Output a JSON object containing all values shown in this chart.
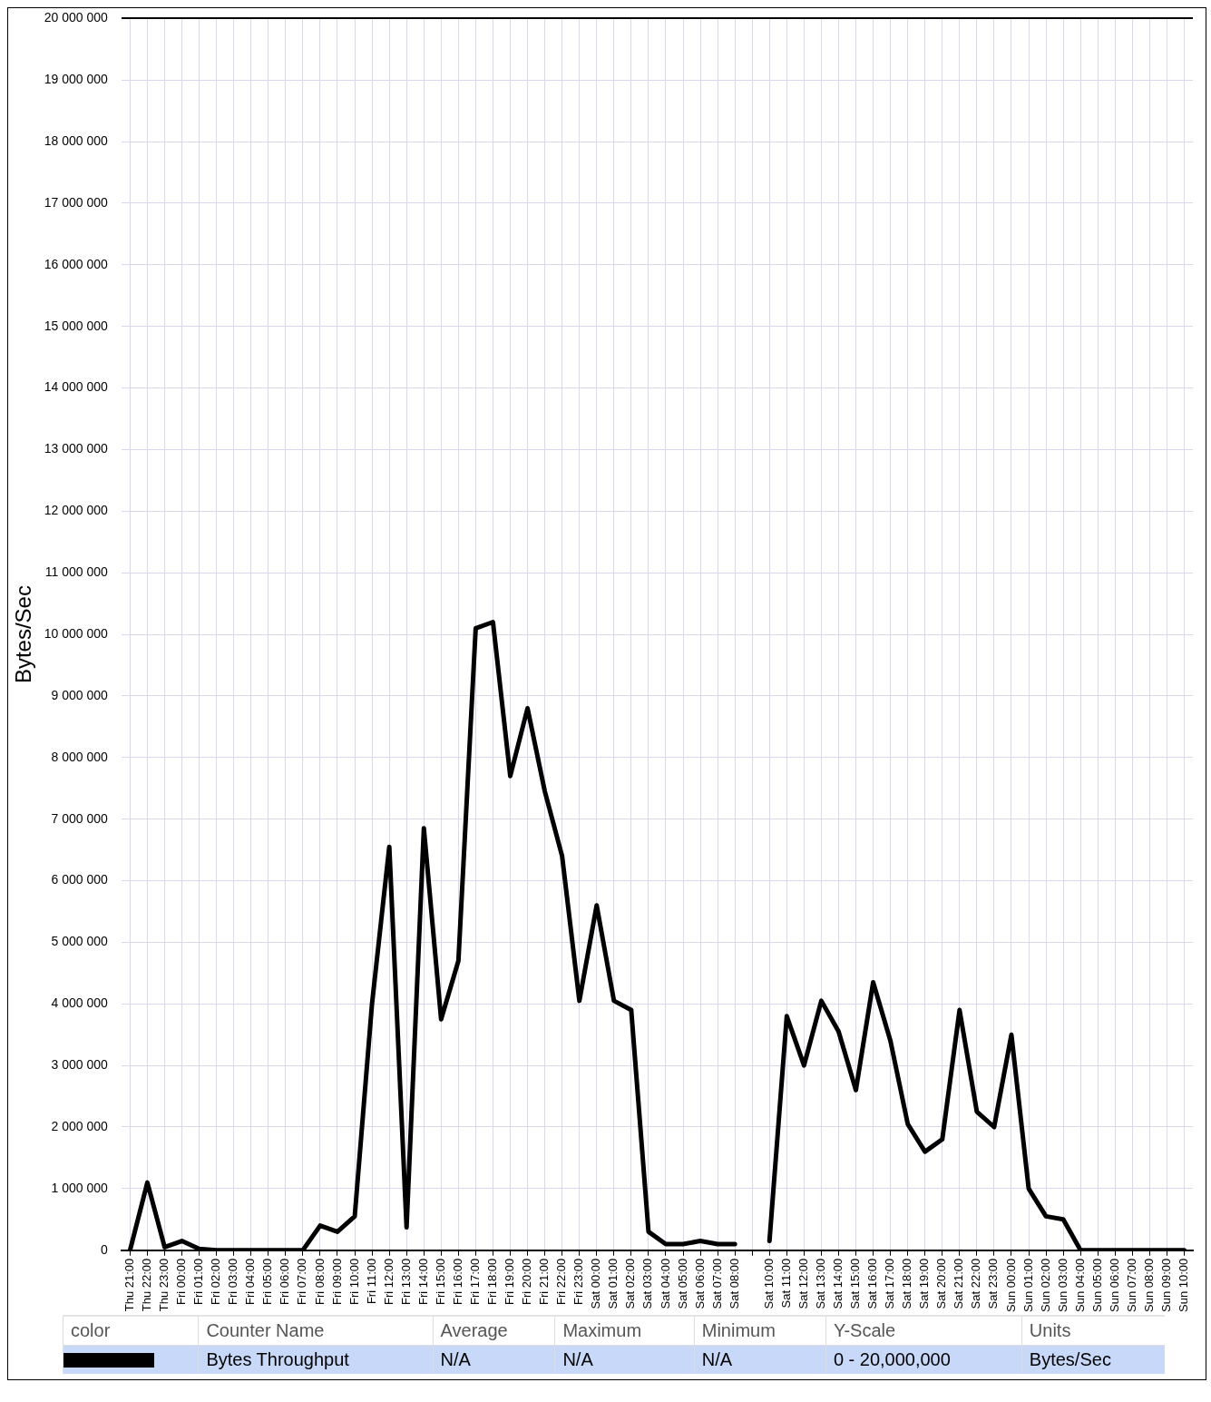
{
  "chart_data": {
    "type": "line",
    "ylabel": "Bytes/Sec",
    "categories": [
      "Thu 21:00",
      "Thu 22:00",
      "Thu 23:00",
      "Fri 00:00",
      "Fri 01:00",
      "Fri 02:00",
      "Fri 03:00",
      "Fri 04:00",
      "Fri 05:00",
      "Fri 06:00",
      "Fri 07:00",
      "Fri 08:00",
      "Fri 09:00",
      "Fri 10:00",
      "Fri 11:00",
      "Fri 12:00",
      "Fri 13:00",
      "Fri 14:00",
      "Fri 15:00",
      "Fri 16:00",
      "Fri 17:00",
      "Fri 18:00",
      "Fri 19:00",
      "Fri 20:00",
      "Fri 21:00",
      "Fri 22:00",
      "Fri 23:00",
      "Sat 00:00",
      "Sat 01:00",
      "Sat 02:00",
      "Sat 03:00",
      "Sat 04:00",
      "Sat 05:00",
      "Sat 06:00",
      "Sat 07:00",
      "Sat 08:00",
      null,
      "Sat 10:00",
      "Sat 11:00",
      "Sat 12:00",
      "Sat 13:00",
      "Sat 14:00",
      "Sat 15:00",
      "Sat 16:00",
      "Sat 17:00",
      "Sat 18:00",
      "Sat 19:00",
      "Sat 20:00",
      "Sat 21:00",
      "Sat 22:00",
      "Sat 23:00",
      "Sun 00:00",
      "Sun 01:00",
      "Sun 02:00",
      "Sun 03:00",
      "Sun 04:00",
      "Sun 05:00",
      "Sun 06:00",
      "Sun 07:00",
      "Sun 08:00",
      "Sun 09:00",
      "Sun 10:00"
    ],
    "series": [
      {
        "name": "Bytes Throughput",
        "color": "#000000",
        "values": [
          0,
          1100000,
          50000,
          150000,
          20000,
          0,
          0,
          0,
          0,
          0,
          0,
          400000,
          300000,
          550000,
          4000000,
          6550000,
          370000,
          6850000,
          3750000,
          4700000,
          10100000,
          10200000,
          7700000,
          8800000,
          7450000,
          6400000,
          4050000,
          5600000,
          4050000,
          3900000,
          300000,
          100000,
          100000,
          150000,
          100000,
          100000,
          null,
          150000,
          3800000,
          3000000,
          4050000,
          3550000,
          2600000,
          4350000,
          3400000,
          2050000,
          1600000,
          1800000,
          3900000,
          2250000,
          2000000,
          3500000,
          1000000,
          550000,
          500000,
          0,
          0,
          0,
          0,
          0,
          0,
          0
        ]
      }
    ],
    "ylim": [
      0,
      20000000
    ],
    "yticks": [
      {
        "value": 0,
        "label": "0"
      },
      {
        "value": 1000000,
        "label": "1 000 000"
      },
      {
        "value": 2000000,
        "label": "2 000 000"
      },
      {
        "value": 3000000,
        "label": "3 000 000"
      },
      {
        "value": 4000000,
        "label": "4 000 000"
      },
      {
        "value": 5000000,
        "label": "5 000 000"
      },
      {
        "value": 6000000,
        "label": "6 000 000"
      },
      {
        "value": 7000000,
        "label": "7 000 000"
      },
      {
        "value": 8000000,
        "label": "8 000 000"
      },
      {
        "value": 9000000,
        "label": "9 000 000"
      },
      {
        "value": 10000000,
        "label": "10 000 000"
      },
      {
        "value": 11000000,
        "label": "11 000 000"
      },
      {
        "value": 12000000,
        "label": "12 000 000"
      },
      {
        "value": 13000000,
        "label": "13 000 000"
      },
      {
        "value": 14000000,
        "label": "14 000 000"
      },
      {
        "value": 15000000,
        "label": "15 000 000"
      },
      {
        "value": 16000000,
        "label": "16 000 000"
      },
      {
        "value": 17000000,
        "label": "17 000 000"
      },
      {
        "value": 18000000,
        "label": "18 000 000"
      },
      {
        "value": 19000000,
        "label": "19 000 000"
      },
      {
        "value": 20000000,
        "label": "20 000 000"
      }
    ],
    "grid": true,
    "legend": "bottom",
    "marker": "none",
    "line_style": "solid",
    "annotations": [
      "color",
      "Counter Name",
      "Average",
      "Maximum",
      "Minimum",
      "Y-Scale",
      "Units",
      "N/A",
      "N/A",
      "N/A",
      "0 - 20,000,000",
      "Bytes/Sec"
    ]
  }
}
